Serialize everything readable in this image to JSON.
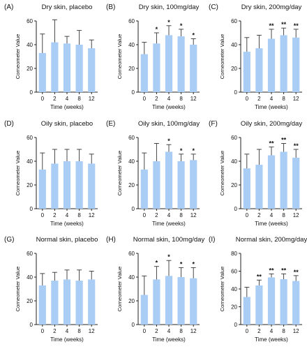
{
  "colors": {
    "bar": "#a9cdf5",
    "error": "#333333",
    "axis": "#222222"
  },
  "chart_data": [
    {
      "letter": "(A)",
      "title": "Dry skin, placebo",
      "type": "bar",
      "categories": [
        "0",
        "2",
        "4",
        "8",
        "12"
      ],
      "values": [
        33,
        42,
        41,
        40,
        37
      ],
      "errors": [
        16,
        19,
        6,
        12,
        7
      ],
      "significance": [
        "",
        "",
        "",
        "",
        ""
      ],
      "yticks": [
        "0",
        "20",
        "40",
        "60"
      ],
      "ylim": [
        0,
        60
      ],
      "ylabel": "Corneometer Value",
      "xlabel": "Time (weeks)"
    },
    {
      "letter": "(B)",
      "title": "Dry skin, 100mg/day",
      "type": "bar",
      "categories": [
        "0",
        "2",
        "4",
        "8",
        "12"
      ],
      "values": [
        32,
        41,
        48,
        47,
        40
      ],
      "errors": [
        10,
        9,
        8,
        6,
        5
      ],
      "significance": [
        "",
        "*",
        "*",
        "*",
        "*"
      ],
      "yticks": [
        "0",
        "20",
        "40",
        "60"
      ],
      "ylim": [
        0,
        60
      ],
      "ylabel": "Corneometer Value",
      "xlabel": "Time (weeks)"
    },
    {
      "letter": "(C)",
      "title": "Dry skin, 200mg/day",
      "type": "bar",
      "categories": [
        "0",
        "2",
        "4",
        "8",
        "12"
      ],
      "values": [
        34,
        37,
        45,
        48,
        46
      ],
      "errors": [
        12,
        11,
        8,
        6,
        7
      ],
      "significance": [
        "",
        "",
        "**",
        "**",
        "**"
      ],
      "yticks": [
        "0",
        "20",
        "40",
        "60"
      ],
      "ylim": [
        0,
        60
      ],
      "ylabel": "Corneometer Value",
      "xlabel": "Time (weeks)"
    },
    {
      "letter": "(D)",
      "title": "Oily skin, placebo",
      "type": "bar",
      "categories": [
        "0",
        "2",
        "4",
        "8",
        "12"
      ],
      "values": [
        33,
        38,
        40,
        40,
        38
      ],
      "errors": [
        14,
        12,
        10,
        10,
        8
      ],
      "significance": [
        "",
        "",
        "",
        "",
        ""
      ],
      "yticks": [
        "0",
        "20",
        "40",
        "60"
      ],
      "ylim": [
        0,
        60
      ],
      "ylabel": "Corneometer Value",
      "xlabel": "Time (weeks)"
    },
    {
      "letter": "(E)",
      "title": "Oily skin, 100mg/day",
      "type": "bar",
      "categories": [
        "0",
        "2",
        "4",
        "8",
        "12"
      ],
      "values": [
        33,
        40,
        48,
        40,
        41
      ],
      "errors": [
        14,
        15,
        6,
        6,
        5
      ],
      "significance": [
        "",
        "",
        "*",
        "*",
        "*"
      ],
      "yticks": [
        "0",
        "20",
        "40",
        "60"
      ],
      "ylim": [
        0,
        60
      ],
      "ylabel": "Corneometer Value",
      "xlabel": "Time (weeks)"
    },
    {
      "letter": "(F)",
      "title": "Oily skin, 200mg/day",
      "type": "bar",
      "categories": [
        "0",
        "2",
        "4",
        "8",
        "12"
      ],
      "values": [
        34,
        37,
        45,
        48,
        43
      ],
      "errors": [
        12,
        13,
        7,
        7,
        7
      ],
      "significance": [
        "",
        "",
        "**",
        "**",
        "**"
      ],
      "yticks": [
        "0",
        "20",
        "40",
        "60"
      ],
      "ylim": [
        0,
        60
      ],
      "ylabel": "Corneometer Value",
      "xlabel": "Time (weeks)"
    },
    {
      "letter": "(G)",
      "title": "Normal  skin, placebo",
      "type": "bar",
      "categories": [
        "0",
        "2",
        "4",
        "8",
        "12"
      ],
      "values": [
        33,
        37,
        38,
        37,
        38
      ],
      "errors": [
        10,
        7,
        8,
        9,
        7
      ],
      "significance": [
        "",
        "",
        "",
        "",
        ""
      ],
      "yticks": [
        "0",
        "20",
        "40",
        "60"
      ],
      "ylim": [
        0,
        60
      ],
      "ylabel": "Corneometer Value",
      "xlabel": "Time (weeks)"
    },
    {
      "letter": "(H)",
      "title": "Normal skin, 100mg/day",
      "type": "bar",
      "categories": [
        "0",
        "2",
        "4",
        "8",
        "12"
      ],
      "values": [
        25,
        38,
        41,
        40,
        39
      ],
      "errors": [
        16,
        11,
        13,
        8,
        9
      ],
      "significance": [
        "",
        "*",
        "*",
        "*",
        "*"
      ],
      "yticks": [
        "0",
        "20",
        "40",
        "60"
      ],
      "ylim": [
        0,
        60
      ],
      "ylabel": "Corneometer Value",
      "xlabel": "Time (weeks)"
    },
    {
      "letter": "(I)",
      "title": "Normal skin, 200mg/day",
      "type": "bar",
      "categories": [
        "0",
        "2",
        "4",
        "8",
        "12"
      ],
      "values": [
        31,
        44,
        53,
        51,
        49
      ],
      "errors": [
        11,
        6,
        4,
        6,
        6
      ],
      "significance": [
        "",
        "**",
        "**",
        "**",
        "**"
      ],
      "yticks": [
        "0",
        "20",
        "40",
        "60",
        "80"
      ],
      "ylim": [
        0,
        80
      ],
      "ylabel": "Corneometer Value",
      "xlabel": "Time (weeks)"
    }
  ]
}
